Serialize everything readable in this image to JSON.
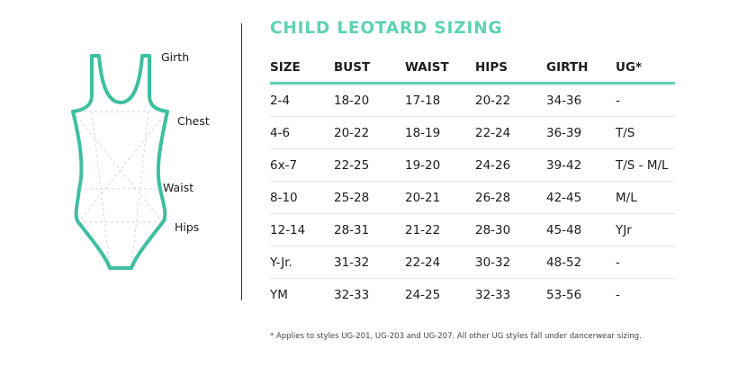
{
  "title": "CHILD LEOTARD SIZING",
  "measurements": {
    "girth": "Girth",
    "chest": "Chest",
    "waist": "Waist",
    "hips": "Hips"
  },
  "table": {
    "headers": [
      "SIZE",
      "BUST",
      "WAIST",
      "HIPS",
      "GIRTH",
      "UG*"
    ],
    "rows": [
      [
        "2-4",
        "18-20",
        "17-18",
        "20-22",
        "34-36",
        "-"
      ],
      [
        "4-6",
        "20-22",
        "18-19",
        "22-24",
        "36-39",
        "T/S"
      ],
      [
        "6x-7",
        "22-25",
        "19-20",
        "24-26",
        "39-42",
        "T/S - M/L"
      ],
      [
        "8-10",
        "25-28",
        "20-21",
        "26-28",
        "42-45",
        "M/L"
      ],
      [
        "12-14",
        "28-31",
        "21-22",
        "28-30",
        "45-48",
        "YJr"
      ],
      [
        "Y-Jr.",
        "31-32",
        "22-24",
        "30-32",
        "48-52",
        "-"
      ],
      [
        "YM",
        "32-33",
        "24-25",
        "32-33",
        "53-56",
        "-"
      ]
    ]
  },
  "footnote": "* Applies to styles UG-201, UG-203 and UG-207. All other UG styles fall under dancerwear sizing.",
  "colors": {
    "accent": "#5ed2b4",
    "text": "#1c1c1c",
    "divider": "#333333"
  }
}
